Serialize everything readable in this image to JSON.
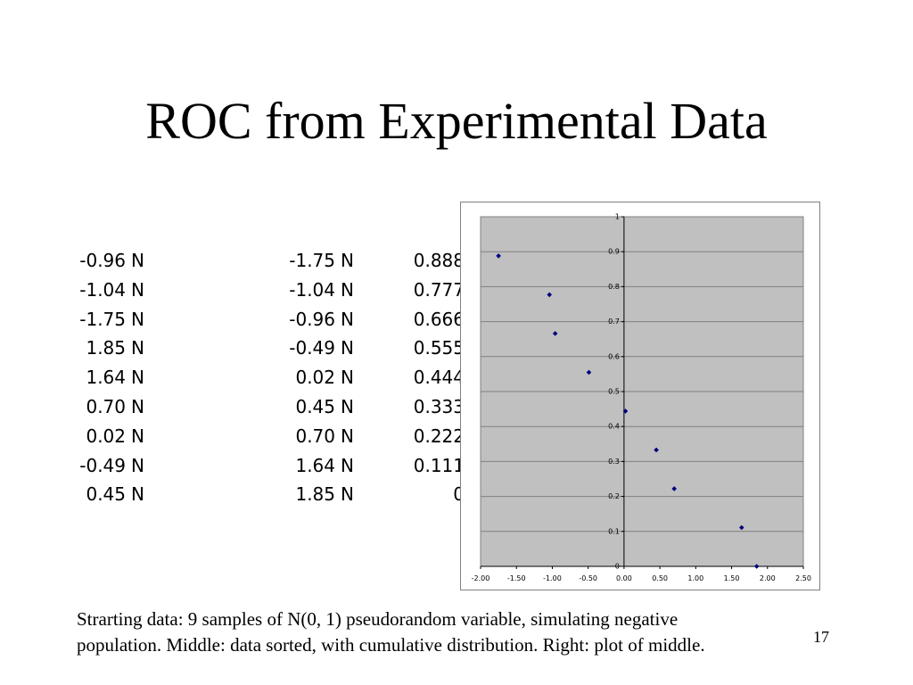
{
  "slide": {
    "title": "ROC from Experimental Data",
    "caption_line1": "Strarting data: 9 samples of N(0, 1) pseudorandom variable, simulating negative",
    "caption_line2": "population. Middle: data sorted, with cumulative distribution. Right: plot of middle.",
    "slide_number": "17"
  },
  "table": {
    "rows": [
      {
        "raw": "-0.96",
        "raw_tag": "N",
        "sorted": "-1.75",
        "sorted_tag": "N",
        "cum": "0.888"
      },
      {
        "raw": "-1.04",
        "raw_tag": "N",
        "sorted": "-1.04",
        "sorted_tag": "N",
        "cum": "0.777"
      },
      {
        "raw": "-1.75",
        "raw_tag": "N",
        "sorted": "-0.96",
        "sorted_tag": "N",
        "cum": "0.666"
      },
      {
        "raw": "1.85",
        "raw_tag": "N",
        "sorted": "-0.49",
        "sorted_tag": "N",
        "cum": "0.555"
      },
      {
        "raw": "1.64",
        "raw_tag": "N",
        "sorted": "0.02",
        "sorted_tag": "N",
        "cum": "0.444"
      },
      {
        "raw": "0.70",
        "raw_tag": "N",
        "sorted": "0.45",
        "sorted_tag": "N",
        "cum": "0.333"
      },
      {
        "raw": "0.02",
        "raw_tag": "N",
        "sorted": "0.70",
        "sorted_tag": "N",
        "cum": "0.222"
      },
      {
        "raw": "-0.49",
        "raw_tag": "N",
        "sorted": "1.64",
        "sorted_tag": "N",
        "cum": "0.111"
      },
      {
        "raw": "0.45",
        "raw_tag": "N",
        "sorted": "1.85",
        "sorted_tag": "N",
        "cum": "0"
      }
    ]
  },
  "chart_data": {
    "type": "scatter",
    "title": "",
    "xlabel": "",
    "ylabel": "",
    "x": [
      -1.75,
      -1.04,
      -0.96,
      -0.49,
      0.02,
      0.45,
      0.7,
      1.64,
      1.85
    ],
    "y": [
      0.888,
      0.777,
      0.666,
      0.555,
      0.444,
      0.333,
      0.222,
      0.111,
      0
    ],
    "xlim": [
      -2.0,
      2.5
    ],
    "ylim": [
      0,
      1
    ],
    "x_ticks": [
      "-2.00",
      "-1.50",
      "-1.00",
      "-0.50",
      "0.00",
      "0.50",
      "1.00",
      "1.50",
      "2.00",
      "2.50"
    ],
    "y_ticks": [
      "0",
      "0.1",
      "0.2",
      "0.3",
      "0.4",
      "0.5",
      "0.6",
      "0.7",
      "0.8",
      "0.9",
      "1"
    ],
    "grid": true,
    "legend": "none",
    "colors": {
      "plot_area": "#c0c0c0",
      "gridline": "#808080",
      "axis": "#000000",
      "marker": "#000080"
    }
  }
}
